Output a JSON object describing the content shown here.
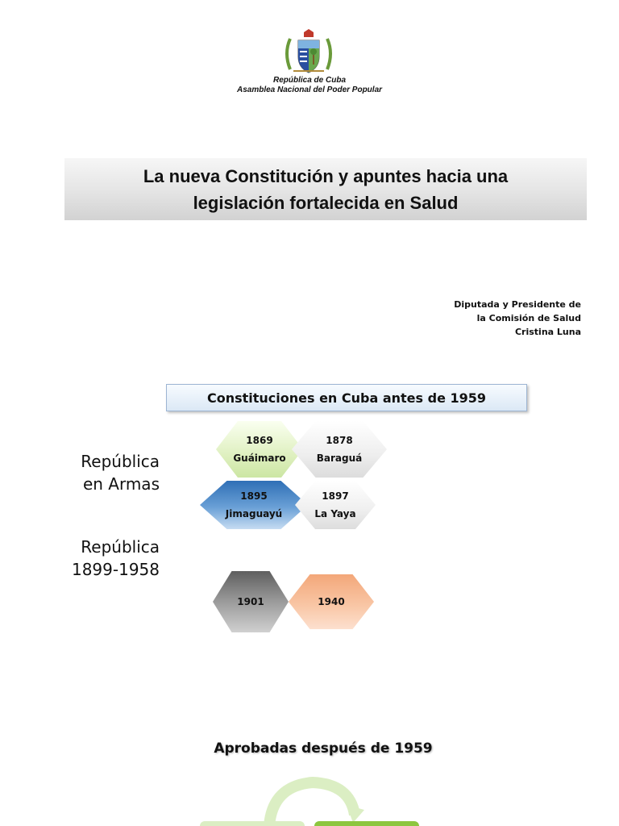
{
  "header": {
    "org_line_1": "República de Cuba",
    "org_line_2": "Asamblea Nacional del Poder Popular"
  },
  "title": {
    "line_1": "La nueva Constitución y apuntes hacia una",
    "line_2": "legislación fortalecida en Salud"
  },
  "author": {
    "line_1": "Diputada y Presidente de",
    "line_2": "la Comisión de Salud",
    "line_3": "Cristina Luna"
  },
  "section": {
    "title": "Constituciones en Cuba antes de 1959"
  },
  "periods": {
    "republica_en_armas": [
      "República",
      "en Armas"
    ],
    "republica_1899_1958": [
      "República",
      "1899-1958"
    ]
  },
  "constitutions": [
    {
      "year": "1869",
      "place": "Guáimaro",
      "color": "#dff0c0"
    },
    {
      "year": "1878",
      "place": "Baraguá",
      "color": "#eeeeee"
    },
    {
      "year": "1895",
      "place": "Jimaguayú",
      "color": "#4a86c6"
    },
    {
      "year": "1897",
      "place": "La Yaya",
      "color": "#efefef"
    },
    {
      "year": "1901",
      "place": "",
      "color": "#9b9b9b"
    },
    {
      "year": "1940",
      "place": "",
      "color": "#f9c8a8"
    }
  ],
  "after": {
    "title": "Aprobadas después de 1959"
  },
  "colors": {
    "banner_gray": "#e4e4e4",
    "section_blue": "#dbe8f5",
    "cycle_green": "#8cc63f"
  }
}
